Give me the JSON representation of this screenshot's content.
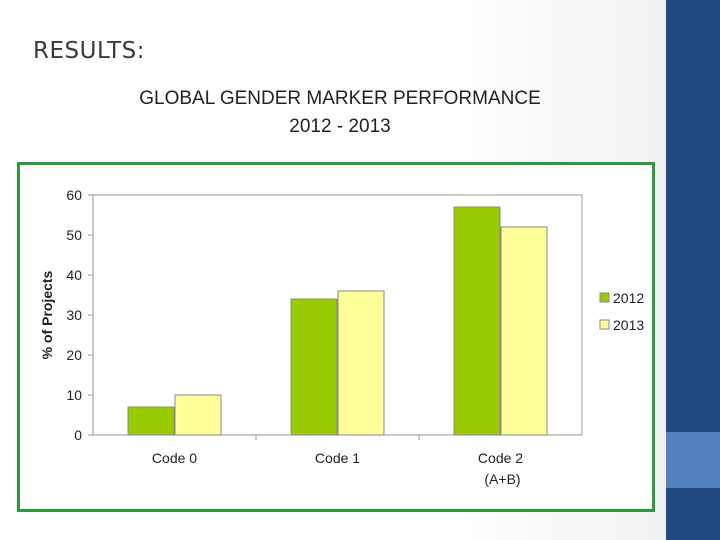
{
  "slide": {
    "heading": "RESULTS:",
    "title_line1": "GLOBAL GENDER MARKER PERFORMANCE",
    "title_line2": "2012 - 2013"
  },
  "colors": {
    "series_2012": "#99cc00",
    "series_2013": "#ffff99",
    "frame": "#2f9a3a",
    "side_bar": "#1f497d",
    "side_accent": "#4f81bd"
  },
  "chart_data": {
    "type": "bar",
    "title": "GLOBAL GENDER MARKER PERFORMANCE 2012 - 2013",
    "xlabel": "",
    "ylabel": "% of Projects",
    "ylim": [
      0,
      60
    ],
    "yticks": [
      0,
      10,
      20,
      30,
      40,
      50,
      60
    ],
    "categories": [
      {
        "line1": "Code 0",
        "line2": ""
      },
      {
        "line1": "Code 1",
        "line2": ""
      },
      {
        "line1": "Code 2",
        "line2": "(A+B)"
      }
    ],
    "series": [
      {
        "name": "2012",
        "values": [
          7,
          34,
          57
        ]
      },
      {
        "name": "2013",
        "values": [
          10,
          36,
          52
        ]
      }
    ],
    "grid": false,
    "legend": "right"
  }
}
